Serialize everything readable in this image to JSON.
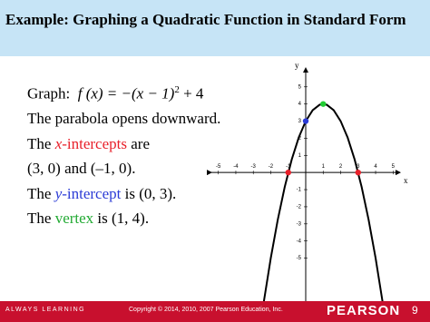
{
  "header": {
    "title": "Example:  Graphing a Quadratic Function in Standard Form"
  },
  "body": {
    "graph_label": "Graph:",
    "formula": [
      "f (x) = −(x − 1)",
      "2",
      " + 4"
    ],
    "line1": "The parabola opens downward.",
    "line2": [
      "The ",
      "x",
      "-intercepts",
      " are"
    ],
    "line3": "(3, 0) and (–1, 0).",
    "line4": [
      "The ",
      "y",
      "-intercept",
      " is (0, 3)."
    ],
    "line5": [
      "The ",
      "vertex",
      " is (1, 4)."
    ]
  },
  "footer": {
    "tagline": "ALWAYS LEARNING",
    "copyright": "Copyright © 2014, 2010, 2007 Pearson Education, Inc.",
    "brand": "PEARSON",
    "page": "9"
  },
  "chart_data": {
    "type": "line",
    "xlabel": "x",
    "ylabel": "y",
    "x": [
      -2.4,
      -2.0,
      -1.6,
      -1.2,
      -0.8,
      -0.4,
      0,
      0.4,
      0.8,
      1.2,
      1.6,
      2.0,
      2.4,
      2.8,
      3.2,
      3.6,
      4.0,
      4.4
    ],
    "series": [
      {
        "color": "#000000",
        "values": [
          -7.56,
          -5,
          -2.76,
          -0.84,
          0.76,
          2.04,
          3,
          3.64,
          3.96,
          3.96,
          3.64,
          3,
          2.04,
          0.76,
          -0.84,
          -2.76,
          -5,
          -7.56
        ]
      }
    ],
    "points": [
      {
        "x": -1,
        "y": 0,
        "color": "#e8202a"
      },
      {
        "x": 3,
        "y": 0,
        "color": "#e8202a"
      },
      {
        "x": 0,
        "y": 3,
        "color": "#2b3bd6"
      },
      {
        "x": 1,
        "y": 4,
        "color": "#22cc33"
      }
    ],
    "xlim": [
      -5.4,
      5.4
    ],
    "ylim": [
      -8.2,
      6.1
    ],
    "xticks": [
      -5,
      -4,
      -3,
      -2,
      -1,
      1,
      2,
      3,
      4,
      5
    ],
    "yticks": [
      -5,
      -4,
      -3,
      -2,
      -1,
      1,
      2,
      3,
      4,
      5
    ]
  }
}
